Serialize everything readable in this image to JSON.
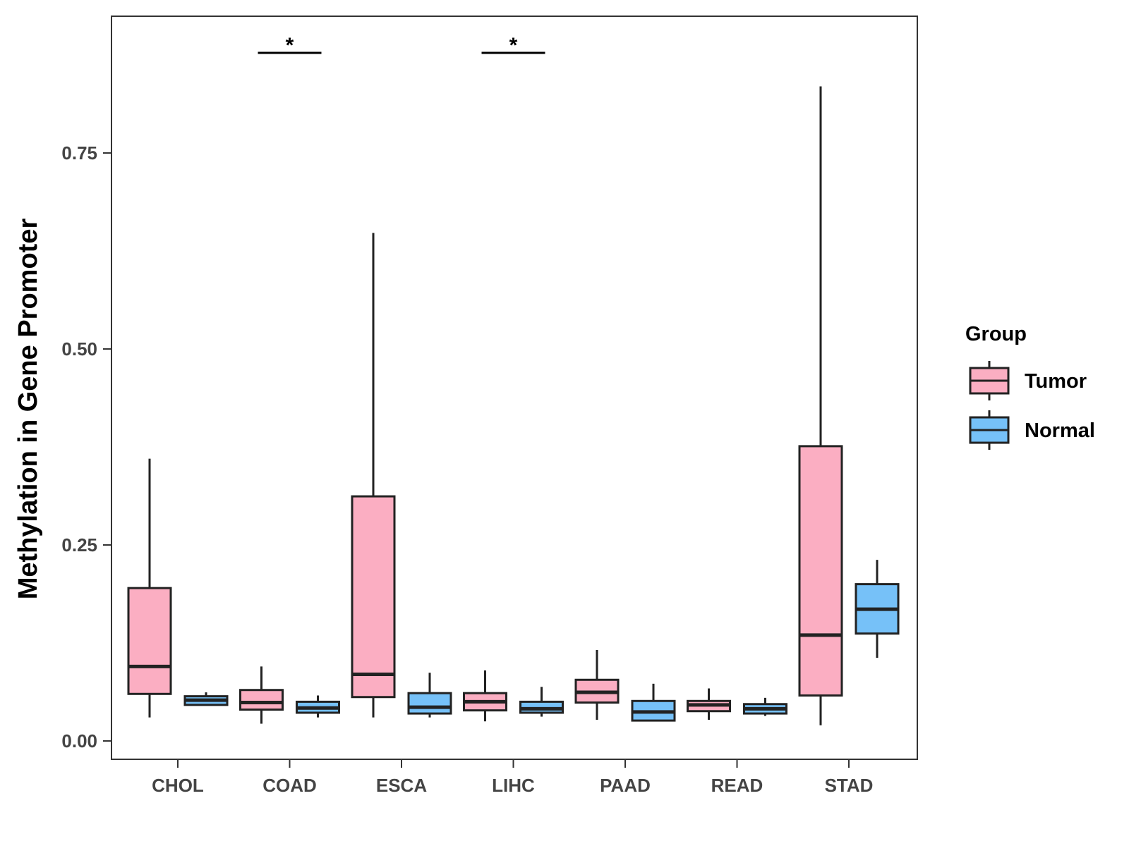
{
  "chart_data": {
    "type": "boxplot",
    "ylabel": "Methylation in Gene Promoter",
    "xlabel": "",
    "ylim": [
      0,
      0.93
    ],
    "yticks": [
      "0.00",
      "0.25",
      "0.50",
      "0.75"
    ],
    "ytick_values": [
      0.0,
      0.25,
      0.5,
      0.75
    ],
    "categories": [
      "CHOL",
      "COAD",
      "ESCA",
      "LIHC",
      "PAAD",
      "READ",
      "STAD"
    ],
    "legend": {
      "title": "Group",
      "position": "right",
      "entries": [
        {
          "name": "Tumor",
          "color": "#FBAEC2"
        },
        {
          "name": "Normal",
          "color": "#76C1F8"
        }
      ]
    },
    "series": [
      {
        "name": "Tumor",
        "color": "#FBAEC2",
        "boxes": [
          {
            "category": "CHOL",
            "min": 0.03,
            "q1": 0.06,
            "median": 0.095,
            "q3": 0.195,
            "max": 0.36
          },
          {
            "category": "COAD",
            "min": 0.022,
            "q1": 0.04,
            "median": 0.049,
            "q3": 0.065,
            "max": 0.095
          },
          {
            "category": "ESCA",
            "min": 0.03,
            "q1": 0.056,
            "median": 0.085,
            "q3": 0.312,
            "max": 0.648
          },
          {
            "category": "LIHC",
            "min": 0.025,
            "q1": 0.039,
            "median": 0.05,
            "q3": 0.061,
            "max": 0.09
          },
          {
            "category": "PAAD",
            "min": 0.027,
            "q1": 0.049,
            "median": 0.062,
            "q3": 0.078,
            "max": 0.116
          },
          {
            "category": "READ",
            "min": 0.027,
            "q1": 0.038,
            "median": 0.046,
            "q3": 0.051,
            "max": 0.067
          },
          {
            "category": "STAD",
            "min": 0.02,
            "q1": 0.058,
            "median": 0.135,
            "q3": 0.376,
            "max": 0.835
          }
        ]
      },
      {
        "name": "Normal",
        "color": "#76C1F8",
        "boxes": [
          {
            "category": "CHOL",
            "min": 0.046,
            "q1": 0.046,
            "median": 0.052,
            "q3": 0.057,
            "max": 0.062
          },
          {
            "category": "COAD",
            "min": 0.03,
            "q1": 0.036,
            "median": 0.042,
            "q3": 0.05,
            "max": 0.058
          },
          {
            "category": "ESCA",
            "min": 0.03,
            "q1": 0.035,
            "median": 0.043,
            "q3": 0.061,
            "max": 0.087
          },
          {
            "category": "LIHC",
            "min": 0.031,
            "q1": 0.036,
            "median": 0.041,
            "q3": 0.05,
            "max": 0.069
          },
          {
            "category": "PAAD",
            "min": 0.025,
            "q1": 0.026,
            "median": 0.037,
            "q3": 0.051,
            "max": 0.073
          },
          {
            "category": "READ",
            "min": 0.032,
            "q1": 0.035,
            "median": 0.041,
            "q3": 0.047,
            "max": 0.055
          },
          {
            "category": "STAD",
            "min": 0.106,
            "q1": 0.137,
            "median": 0.168,
            "q3": 0.2,
            "max": 0.231
          }
        ]
      }
    ],
    "annotations": [
      {
        "category": "COAD",
        "text": "*"
      },
      {
        "category": "LIHC",
        "text": "*"
      }
    ],
    "grid": false
  }
}
